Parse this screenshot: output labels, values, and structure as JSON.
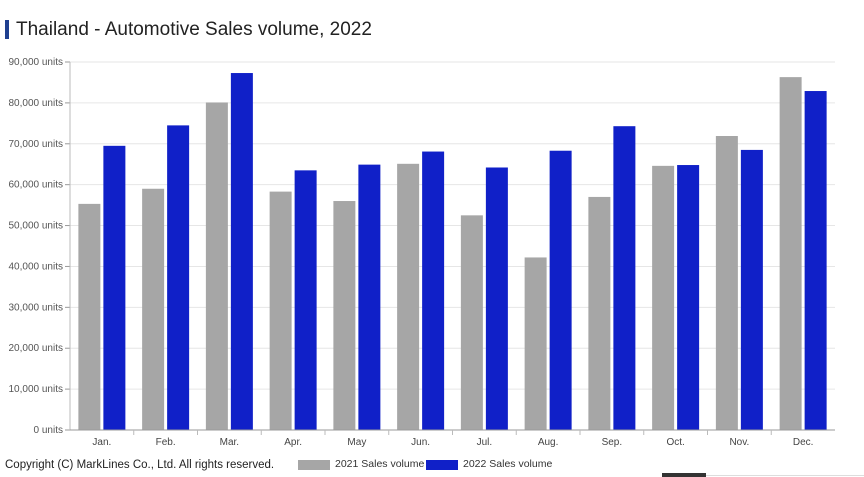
{
  "chart_data": {
    "type": "bar",
    "title": "Thailand - Automotive Sales volume, 2022",
    "xlabel": "",
    "ylabel": "",
    "ylim": [
      0,
      90000
    ],
    "yticks": [
      0,
      10000,
      20000,
      30000,
      40000,
      50000,
      60000,
      70000,
      80000,
      90000
    ],
    "ytick_labels": [
      "0 units",
      "10,000 units",
      "20,000 units",
      "30,000 units",
      "40,000 units",
      "50,000 units",
      "60,000 units",
      "70,000 units",
      "80,000 units",
      "90,000 units"
    ],
    "categories": [
      "Jan.",
      "Feb.",
      "Mar.",
      "Apr.",
      "May",
      "Jun.",
      "Jul.",
      "Aug.",
      "Sep.",
      "Oct.",
      "Nov.",
      "Dec."
    ],
    "series": [
      {
        "name": "2021 Sales volume",
        "color": "#a6a6a6",
        "values": [
          55300,
          59000,
          80100,
          58300,
          56000,
          65100,
          52500,
          42200,
          57000,
          64600,
          71900,
          86300
        ]
      },
      {
        "name": "2022 Sales volume",
        "color": "#1020c8",
        "values": [
          69500,
          74500,
          87300,
          63500,
          64900,
          68100,
          64200,
          68300,
          74300,
          64800,
          68500,
          82900
        ]
      }
    ],
    "grid": true,
    "legend_position": "bottom"
  },
  "footer": {
    "copyright": "Copyright (C) MarkLines Co., Ltd. All rights reserved."
  }
}
